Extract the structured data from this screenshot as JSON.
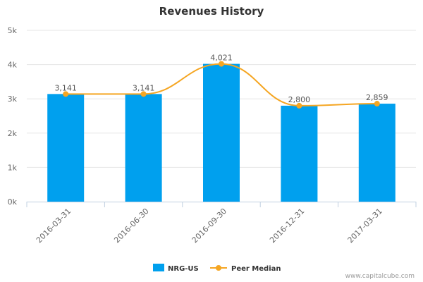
{
  "chart_data": {
    "type": "bar",
    "title": "Revenues History",
    "categories": [
      "2016-03-31",
      "2016-06-30",
      "2016-09-30",
      "2016-12-31",
      "2017-03-31"
    ],
    "series": [
      {
        "name": "NRG-US",
        "type": "bar",
        "values": [
          3141,
          3141,
          4021,
          2800,
          2859
        ],
        "color": "#00a0ee"
      },
      {
        "name": "Peer Median",
        "type": "line",
        "values": [
          3141,
          3141,
          4021,
          2800,
          2859
        ],
        "color": "#f5a623"
      }
    ],
    "data_labels": [
      "3,141",
      "3,141",
      "4,021",
      "2,800",
      "2,859"
    ],
    "yticks": [
      {
        "value": 0,
        "label": "0k"
      },
      {
        "value": 1000,
        "label": "1k"
      },
      {
        "value": 2000,
        "label": "2k"
      },
      {
        "value": 3000,
        "label": "3k"
      },
      {
        "value": 4000,
        "label": "4k"
      },
      {
        "value": 5000,
        "label": "5k"
      }
    ],
    "ylim": [
      0,
      5000
    ],
    "grid": true,
    "legend_position": "bottom-center"
  },
  "credit": "www.capitalcube.com"
}
